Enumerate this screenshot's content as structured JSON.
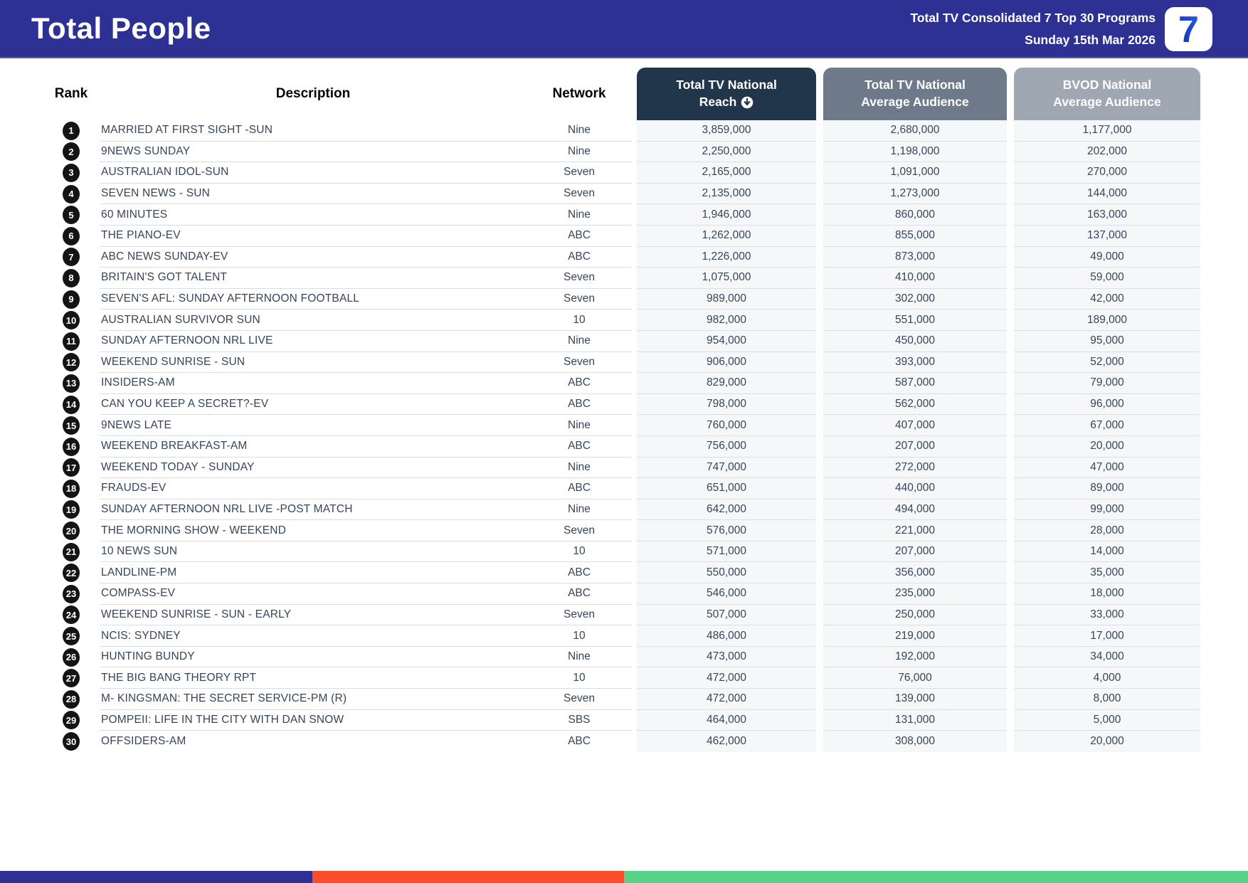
{
  "header": {
    "title": "Total People",
    "subtitle_line1": "Total TV Consolidated 7 Top 30 Programs",
    "subtitle_line2": "Sunday 15th Mar 2026",
    "logo_text": "7"
  },
  "colors": {
    "header_bg": "#2D3193",
    "reach_header_bg": "#22364B",
    "avg_header_bg": "#6E7A8A",
    "bvod_header_bg": "#9EA7B2",
    "footer_blue": "#2D3193",
    "footer_orange": "#FA4E2B",
    "footer_green": "#57D389"
  },
  "table": {
    "columns": {
      "rank": "Rank",
      "description": "Description",
      "network": "Network",
      "reach_line1": "Total TV National",
      "reach_line2": "Reach",
      "avg_line1": "Total TV National",
      "avg_line2": "Average Audience",
      "bvod_line1": "BVOD National",
      "bvod_line2": "Average Audience",
      "sort_icon": "circle-arrow-down"
    },
    "rows": [
      {
        "rank": "1",
        "description": "MARRIED AT FIRST SIGHT -SUN",
        "network": "Nine",
        "reach": "3,859,000",
        "avg_audience": "2,680,000",
        "bvod_audience": "1,177,000"
      },
      {
        "rank": "2",
        "description": "9NEWS SUNDAY",
        "network": "Nine",
        "reach": "2,250,000",
        "avg_audience": "1,198,000",
        "bvod_audience": "202,000"
      },
      {
        "rank": "3",
        "description": "AUSTRALIAN IDOL-SUN",
        "network": "Seven",
        "reach": "2,165,000",
        "avg_audience": "1,091,000",
        "bvod_audience": "270,000"
      },
      {
        "rank": "4",
        "description": "SEVEN NEWS - SUN",
        "network": "Seven",
        "reach": "2,135,000",
        "avg_audience": "1,273,000",
        "bvod_audience": "144,000"
      },
      {
        "rank": "5",
        "description": "60 MINUTES",
        "network": "Nine",
        "reach": "1,946,000",
        "avg_audience": "860,000",
        "bvod_audience": "163,000"
      },
      {
        "rank": "6",
        "description": "THE PIANO-EV",
        "network": "ABC",
        "reach": "1,262,000",
        "avg_audience": "855,000",
        "bvod_audience": "137,000"
      },
      {
        "rank": "7",
        "description": "ABC NEWS SUNDAY-EV",
        "network": "ABC",
        "reach": "1,226,000",
        "avg_audience": "873,000",
        "bvod_audience": "49,000"
      },
      {
        "rank": "8",
        "description": "BRITAIN'S GOT TALENT",
        "network": "Seven",
        "reach": "1,075,000",
        "avg_audience": "410,000",
        "bvod_audience": "59,000"
      },
      {
        "rank": "9",
        "description": "SEVEN'S AFL: SUNDAY AFTERNOON FOOTBALL",
        "network": "Seven",
        "reach": "989,000",
        "avg_audience": "302,000",
        "bvod_audience": "42,000"
      },
      {
        "rank": "10",
        "description": "AUSTRALIAN SURVIVOR SUN",
        "network": "10",
        "reach": "982,000",
        "avg_audience": "551,000",
        "bvod_audience": "189,000"
      },
      {
        "rank": "11",
        "description": "SUNDAY AFTERNOON NRL LIVE",
        "network": "Nine",
        "reach": "954,000",
        "avg_audience": "450,000",
        "bvod_audience": "95,000"
      },
      {
        "rank": "12",
        "description": "WEEKEND SUNRISE - SUN",
        "network": "Seven",
        "reach": "906,000",
        "avg_audience": "393,000",
        "bvod_audience": "52,000"
      },
      {
        "rank": "13",
        "description": "INSIDERS-AM",
        "network": "ABC",
        "reach": "829,000",
        "avg_audience": "587,000",
        "bvod_audience": "79,000"
      },
      {
        "rank": "14",
        "description": "CAN YOU KEEP A SECRET?-EV",
        "network": "ABC",
        "reach": "798,000",
        "avg_audience": "562,000",
        "bvod_audience": "96,000"
      },
      {
        "rank": "15",
        "description": "9NEWS LATE",
        "network": "Nine",
        "reach": "760,000",
        "avg_audience": "407,000",
        "bvod_audience": "67,000"
      },
      {
        "rank": "16",
        "description": "WEEKEND BREAKFAST-AM",
        "network": "ABC",
        "reach": "756,000",
        "avg_audience": "207,000",
        "bvod_audience": "20,000"
      },
      {
        "rank": "17",
        "description": "WEEKEND TODAY - SUNDAY",
        "network": "Nine",
        "reach": "747,000",
        "avg_audience": "272,000",
        "bvod_audience": "47,000"
      },
      {
        "rank": "18",
        "description": "FRAUDS-EV",
        "network": "ABC",
        "reach": "651,000",
        "avg_audience": "440,000",
        "bvod_audience": "89,000"
      },
      {
        "rank": "19",
        "description": "SUNDAY AFTERNOON NRL LIVE -POST MATCH",
        "network": "Nine",
        "reach": "642,000",
        "avg_audience": "494,000",
        "bvod_audience": "99,000"
      },
      {
        "rank": "20",
        "description": "THE MORNING SHOW - WEEKEND",
        "network": "Seven",
        "reach": "576,000",
        "avg_audience": "221,000",
        "bvod_audience": "28,000"
      },
      {
        "rank": "21",
        "description": "10 NEWS SUN",
        "network": "10",
        "reach": "571,000",
        "avg_audience": "207,000",
        "bvod_audience": "14,000"
      },
      {
        "rank": "22",
        "description": "LANDLINE-PM",
        "network": "ABC",
        "reach": "550,000",
        "avg_audience": "356,000",
        "bvod_audience": "35,000"
      },
      {
        "rank": "23",
        "description": "COMPASS-EV",
        "network": "ABC",
        "reach": "546,000",
        "avg_audience": "235,000",
        "bvod_audience": "18,000"
      },
      {
        "rank": "24",
        "description": "WEEKEND SUNRISE - SUN - EARLY",
        "network": "Seven",
        "reach": "507,000",
        "avg_audience": "250,000",
        "bvod_audience": "33,000"
      },
      {
        "rank": "25",
        "description": "NCIS: SYDNEY",
        "network": "10",
        "reach": "486,000",
        "avg_audience": "219,000",
        "bvod_audience": "17,000"
      },
      {
        "rank": "26",
        "description": "HUNTING BUNDY",
        "network": "Nine",
        "reach": "473,000",
        "avg_audience": "192,000",
        "bvod_audience": "34,000"
      },
      {
        "rank": "27",
        "description": "THE BIG BANG THEORY RPT",
        "network": "10",
        "reach": "472,000",
        "avg_audience": "76,000",
        "bvod_audience": "4,000"
      },
      {
        "rank": "28",
        "description": "M- KINGSMAN: THE SECRET SERVICE-PM (R)",
        "network": "Seven",
        "reach": "472,000",
        "avg_audience": "139,000",
        "bvod_audience": "8,000"
      },
      {
        "rank": "29",
        "description": "POMPEII: LIFE IN THE CITY WITH DAN SNOW",
        "network": "SBS",
        "reach": "464,000",
        "avg_audience": "131,000",
        "bvod_audience": "5,000"
      },
      {
        "rank": "30",
        "description": "OFFSIDERS-AM",
        "network": "ABC",
        "reach": "462,000",
        "avg_audience": "308,000",
        "bvod_audience": "20,000"
      }
    ]
  }
}
